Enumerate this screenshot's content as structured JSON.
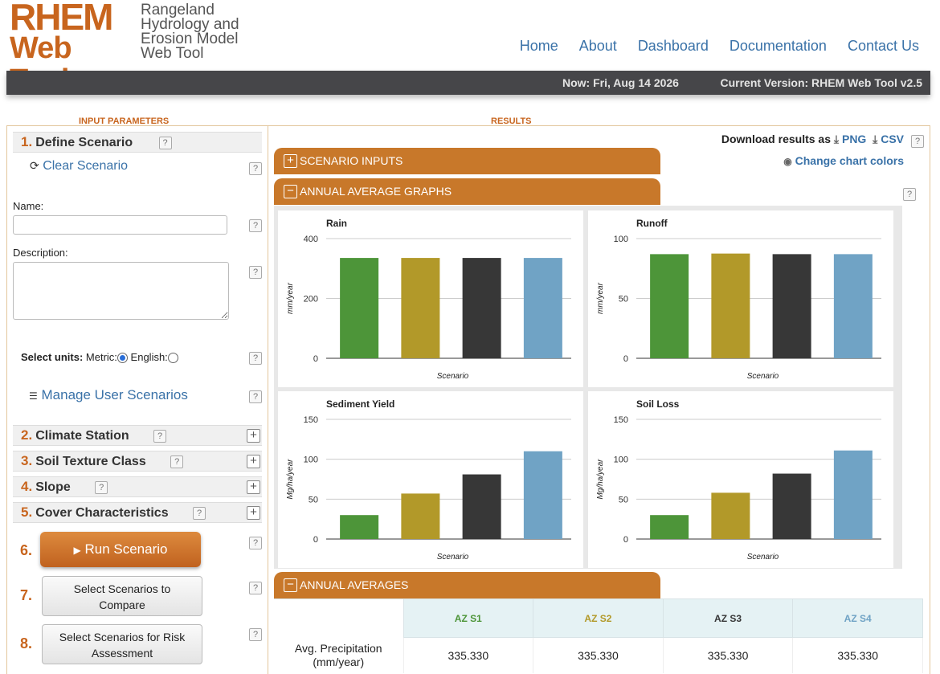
{
  "header": {
    "logo_line1": "RHEM",
    "logo_line2": "Web Tool",
    "tagline": [
      "Rangeland",
      "Hydrology and",
      "Erosion Model",
      "Web Tool"
    ],
    "nav": [
      "Home",
      "About",
      "Dashboard",
      "Documentation",
      "Contact Us"
    ]
  },
  "status": {
    "now": "Now: Fri, Aug 14 2026",
    "version": "Current Version: RHEM Web Tool v2.5"
  },
  "sections": {
    "input": "INPUT PARAMETERS",
    "results": "RESULTS"
  },
  "left": {
    "step1": {
      "num": "1.",
      "label": "Define Scenario"
    },
    "clear": "Clear Scenario",
    "name_label": "Name:",
    "name_value": "",
    "description_label": "Description:",
    "description_value": "",
    "units_label": "Select units:",
    "metric_label": "Metric:",
    "english_label": "English:",
    "metric_selected": true,
    "manage": "Manage User Scenarios",
    "step2": {
      "num": "2.",
      "label": "Climate Station"
    },
    "step3": {
      "num": "3.",
      "label": "Soil Texture Class"
    },
    "step4": {
      "num": "4.",
      "label": "Slope"
    },
    "step5": {
      "num": "5.",
      "label": "Cover Characteristics"
    },
    "step6_num": "6.",
    "run": "Run Scenario",
    "step7_num": "7.",
    "compare_line1": "Select Scenarios to",
    "compare_line2": "Compare",
    "step8_num": "8.",
    "risk_line1": "Select Scenarios for Risk",
    "risk_line2": "Assessment",
    "help_glyph": "?"
  },
  "right": {
    "download_label": "Download results as",
    "png": "PNG",
    "csv": "CSV",
    "change_colors": "Change chart colors",
    "acc_inputs": "SCENARIO INPUTS",
    "acc_graphs": "ANNUAL AVERAGE GRAPHS",
    "acc_averages": "ANNUAL AVERAGES"
  },
  "colors": {
    "s1": "#4d9539",
    "s2": "#b29929",
    "s3": "#373737",
    "s4": "#70a3c5",
    "accent": "#c8651e"
  },
  "chart_data": [
    {
      "type": "bar",
      "title": "Rain",
      "xlabel": "Scenario",
      "ylabel": "mm/year",
      "ylim": [
        0,
        400
      ],
      "ticks": [
        0,
        200,
        400
      ],
      "values": [
        335.33,
        335.33,
        335.33,
        335.33
      ]
    },
    {
      "type": "bar",
      "title": "Runoff",
      "xlabel": "Scenario",
      "ylabel": "mm/year",
      "ylim": [
        0,
        100
      ],
      "ticks": [
        0,
        50,
        100
      ],
      "values": [
        87,
        87.5,
        87,
        87
      ]
    },
    {
      "type": "bar",
      "title": "Sediment Yield",
      "xlabel": "Scenario",
      "ylabel": "Mg/ha/year",
      "ylim": [
        0,
        150
      ],
      "ticks": [
        0,
        50,
        100,
        150
      ],
      "values": [
        30,
        57,
        81,
        110
      ]
    },
    {
      "type": "bar",
      "title": "Soil Loss",
      "xlabel": "Scenario",
      "ylabel": "Mg/ha/year",
      "ylim": [
        0,
        150
      ],
      "ticks": [
        0,
        50,
        100,
        150
      ],
      "values": [
        30,
        58,
        82,
        111
      ]
    }
  ],
  "table": {
    "headers": [
      "AZ S1",
      "AZ S2",
      "AZ S3",
      "AZ S4"
    ],
    "rows": [
      {
        "label_line1": "Avg. Precipitation",
        "label_line2": "(mm/year)",
        "values": [
          "335.330",
          "335.330",
          "335.330",
          "335.330"
        ]
      }
    ]
  }
}
